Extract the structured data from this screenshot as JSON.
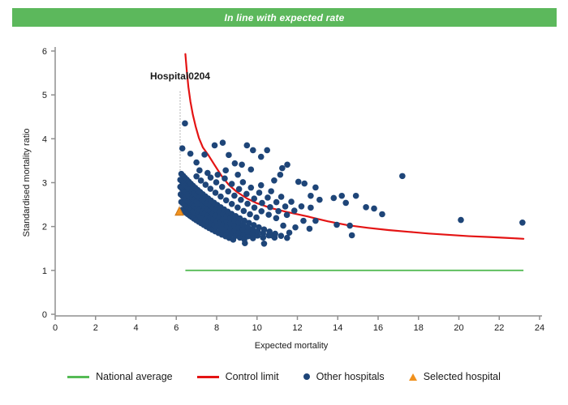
{
  "banner": {
    "title": "In line with expected rate"
  },
  "colors": {
    "banner_bg": "#5cb85c",
    "national_average": "#55bb55",
    "control_limit": "#e41414",
    "other_hospitals": "#1e4578",
    "selected_hospital": "#f0911e",
    "selected_hospital_border": "#c8761a",
    "axis": "#8f8f8f",
    "annotation_line": "#999999",
    "text": "#1a1a1a"
  },
  "chart_data": {
    "type": "scatter",
    "xlabel": "Expected mortality",
    "ylabel": "Standardised mortality ratio",
    "xlim": [
      0,
      24
    ],
    "ylim": [
      0,
      6
    ],
    "xticks": [
      0,
      2,
      4,
      6,
      8,
      10,
      12,
      14,
      16,
      18,
      20,
      22,
      24
    ],
    "yticks": [
      0,
      1,
      2,
      3,
      4,
      5,
      6
    ],
    "grid": false,
    "annotation": {
      "label": "Hospital0204",
      "x": 6.19,
      "label_y": 5.35,
      "line_top_y": 5.08,
      "line_bottom_y": 2.45
    },
    "selected_hospital": {
      "x": 6.15,
      "y": 2.34
    },
    "national_average": {
      "y": 1,
      "x_start": 6.45,
      "x_end": 23.2
    },
    "control_limit": [
      [
        6.45,
        5.93
      ],
      [
        6.52,
        5.55
      ],
      [
        6.6,
        5.18
      ],
      [
        6.7,
        4.85
      ],
      [
        6.82,
        4.55
      ],
      [
        6.96,
        4.28
      ],
      [
        7.12,
        4.02
      ],
      [
        7.32,
        3.8
      ],
      [
        7.6,
        3.62
      ],
      [
        7.9,
        3.4
      ],
      [
        8.25,
        3.15
      ],
      [
        8.6,
        2.95
      ],
      [
        9.0,
        2.79
      ],
      [
        9.5,
        2.64
      ],
      [
        10.0,
        2.53
      ],
      [
        10.7,
        2.42
      ],
      [
        11.5,
        2.33
      ],
      [
        12.5,
        2.23
      ],
      [
        13.5,
        2.12
      ],
      [
        14.5,
        2.03
      ],
      [
        15.5,
        1.97
      ],
      [
        16.5,
        1.92
      ],
      [
        17.5,
        1.88
      ],
      [
        18.5,
        1.84
      ],
      [
        19.5,
        1.81
      ],
      [
        20.5,
        1.78
      ],
      [
        21.5,
        1.76
      ],
      [
        22.4,
        1.74
      ],
      [
        23.2,
        1.72
      ]
    ],
    "other_hospitals": {
      "arcs": [
        {
          "observed": 15,
          "expected": [
            6.3,
            6.39,
            6.48,
            6.57,
            6.67,
            6.77,
            6.88,
            6.99,
            7.11,
            7.23,
            7.36,
            7.49,
            7.63,
            7.78,
            7.93,
            8.09,
            8.26,
            8.44,
            8.62,
            8.82
          ]
        },
        {
          "observed": 16,
          "expected": [
            6.25,
            6.34,
            6.43,
            6.52,
            6.62,
            6.72,
            6.83,
            6.94,
            7.06,
            7.18,
            7.31,
            7.44,
            7.58,
            7.72,
            7.87,
            8.03,
            8.2,
            8.37,
            8.55,
            8.74,
            8.94,
            9.15,
            9.37
          ]
        },
        {
          "observed": 17,
          "expected": [
            6.22,
            6.31,
            6.4,
            6.49,
            6.59,
            6.69,
            6.8,
            6.91,
            7.03,
            7.15,
            7.28,
            7.41,
            7.55,
            7.69,
            7.84,
            8.0,
            8.16,
            8.33,
            8.51,
            8.7,
            8.9,
            9.11,
            9.33,
            9.56,
            9.8
          ]
        },
        {
          "observed": 18,
          "expected": [
            6.2,
            6.29,
            6.38,
            6.47,
            6.57,
            6.67,
            6.78,
            6.89,
            7.01,
            7.13,
            7.26,
            7.39,
            7.53,
            7.67,
            7.82,
            7.98,
            8.14,
            8.31,
            8.49,
            8.68,
            8.88,
            9.09,
            9.31,
            9.54,
            9.78,
            10.03,
            10.3
          ]
        },
        {
          "observed": 19,
          "expected": [
            6.2,
            6.29,
            6.38,
            6.47,
            6.57,
            6.67,
            6.78,
            6.89,
            7.01,
            7.13,
            7.26,
            7.39,
            7.53,
            7.67,
            7.82,
            7.98,
            8.14,
            8.31,
            8.49,
            8.68,
            8.88,
            9.09,
            9.31,
            9.54,
            9.78,
            10.03,
            10.3,
            10.58,
            10.87
          ]
        },
        {
          "observed": 20,
          "expected": [
            6.25,
            6.34,
            6.43,
            6.52,
            6.62,
            6.72,
            6.83,
            6.94,
            7.06,
            7.18,
            7.31,
            7.44,
            7.58,
            7.72,
            7.87,
            8.03,
            8.2,
            8.37,
            8.55,
            8.74,
            8.94,
            9.15,
            9.37,
            9.6,
            9.84,
            10.09,
            10.35,
            10.62,
            10.9,
            11.19,
            11.49
          ]
        },
        {
          "observed": 22,
          "expected": [
            7.0,
            7.22,
            7.45,
            7.69,
            7.94,
            8.2,
            8.47,
            8.75,
            9.04,
            9.34,
            9.65,
            9.97
          ]
        },
        {
          "observed": 24,
          "expected": [
            7.7,
            7.98,
            8.27,
            8.57,
            8.88,
            9.2,
            9.53,
            9.87,
            10.22,
            10.58,
            10.95
          ]
        },
        {
          "observed": 26,
          "expected": [
            8.4,
            8.75,
            9.11,
            9.48,
            9.86,
            10.25,
            10.65,
            11.06,
            11.48
          ]
        },
        {
          "observed": 28,
          "expected": [
            9.3,
            9.7,
            10.11,
            10.53,
            10.96,
            11.4,
            11.85
          ]
        },
        {
          "observed": 30,
          "expected": [
            10.2,
            10.7,
            11.2,
            11.7,
            12.2
          ]
        }
      ],
      "points": [
        [
          6.43,
          4.35
        ],
        [
          6.3,
          3.78
        ],
        [
          6.7,
          3.66
        ],
        [
          7.0,
          3.46
        ],
        [
          7.4,
          3.64
        ],
        [
          7.9,
          3.85
        ],
        [
          8.3,
          3.91
        ],
        [
          8.6,
          3.63
        ],
        [
          8.9,
          3.44
        ],
        [
          9.25,
          3.41
        ],
        [
          9.5,
          3.85
        ],
        [
          9.8,
          3.74
        ],
        [
          10.2,
          3.59
        ],
        [
          10.5,
          3.74
        ],
        [
          11.25,
          3.33
        ],
        [
          11.5,
          3.41
        ],
        [
          7.15,
          3.28
        ],
        [
          7.55,
          3.22
        ],
        [
          8.05,
          3.18
        ],
        [
          8.45,
          3.28
        ],
        [
          9.05,
          3.18
        ],
        [
          9.7,
          3.3
        ],
        [
          10.85,
          3.05
        ],
        [
          11.15,
          3.18
        ],
        [
          12.05,
          3.02
        ],
        [
          12.35,
          2.98
        ],
        [
          12.66,
          2.7
        ],
        [
          12.9,
          2.89
        ],
        [
          13.1,
          2.61
        ],
        [
          13.8,
          2.65
        ],
        [
          14.2,
          2.7
        ],
        [
          14.4,
          2.54
        ],
        [
          14.9,
          2.7
        ],
        [
          15.4,
          2.44
        ],
        [
          15.8,
          2.41
        ],
        [
          16.2,
          2.28
        ],
        [
          12.66,
          2.43
        ],
        [
          12.9,
          2.13
        ],
        [
          13.95,
          2.04
        ],
        [
          14.6,
          2.02
        ],
        [
          14.7,
          1.8
        ],
        [
          17.2,
          3.15
        ],
        [
          20.1,
          2.15
        ],
        [
          23.15,
          2.09
        ],
        [
          10.35,
          1.61
        ],
        [
          11.6,
          1.86
        ],
        [
          11.9,
          1.98
        ],
        [
          12.3,
          2.13
        ],
        [
          12.6,
          1.95
        ],
        [
          10.7,
          1.8
        ],
        [
          11.3,
          2.02
        ],
        [
          9.4,
          1.62
        ]
      ]
    }
  },
  "legend": {
    "items": [
      {
        "label": "National average",
        "marker": "line",
        "color_key": "national_average"
      },
      {
        "label": "Control limit",
        "marker": "line",
        "color_key": "control_limit"
      },
      {
        "label": "Other hospitals",
        "marker": "dot",
        "color_key": "other_hospitals"
      },
      {
        "label": "Selected hospital",
        "marker": "triangle",
        "color_key": "selected_hospital"
      }
    ]
  }
}
